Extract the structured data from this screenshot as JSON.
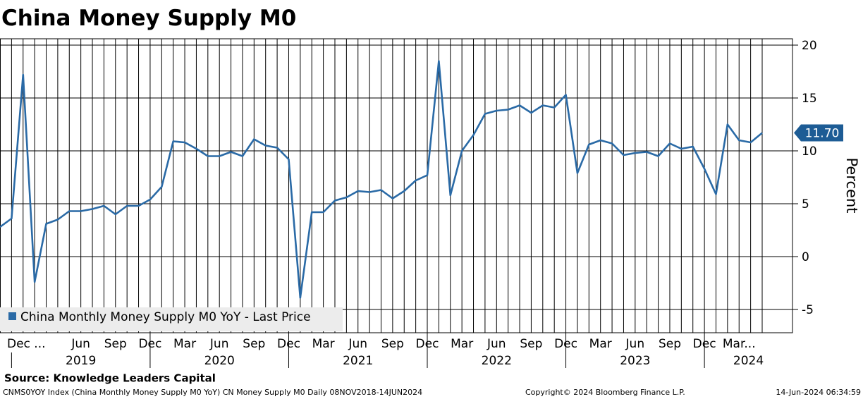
{
  "chart_data": {
    "type": "line",
    "title": "China Money Supply M0",
    "source": "Source: Knowledge Leaders Capital",
    "footer_left": "CNMS0YOY Index (China Monthly Money Supply M0 YoY) CN Money Supply M0  Daily 08NOV2018-14JUN2024",
    "footer_center": "Copyright© 2024 Bloomberg Finance L.P.",
    "footer_right": "14-Jun-2024 06:34:59",
    "y_axis_label": "Percent",
    "categories": [
      null,
      "Dec ...",
      null,
      null,
      null,
      null,
      null,
      "Jun",
      null,
      null,
      "Sep",
      null,
      null,
      "Dec",
      null,
      null,
      "Mar",
      null,
      null,
      "Jun",
      null,
      null,
      "Sep",
      null,
      null,
      "Dec",
      null,
      null,
      "Mar",
      null,
      null,
      "Jun",
      null,
      null,
      "Sep",
      null,
      null,
      "Dec",
      null,
      null,
      "Mar",
      null,
      null,
      "Jun",
      null,
      null,
      "Sep",
      null,
      null,
      "Dec",
      null,
      null,
      "Mar",
      null,
      null,
      "Jun",
      null,
      null,
      "Sep",
      null,
      null,
      "Dec",
      null,
      null,
      "Mar...",
      null,
      null
    ],
    "years": [
      "2019",
      "2020",
      "2021",
      "2022",
      "2023",
      "2024"
    ],
    "series": [
      {
        "name": "China Monthly Money Supply M0 YoY - Last Price",
        "color": "#2a6aa6",
        "values": [
          2.8,
          3.6,
          17.2,
          -2.4,
          3.1,
          3.5,
          4.3,
          4.3,
          4.5,
          4.8,
          4.0,
          4.8,
          4.8,
          5.4,
          6.6,
          10.9,
          10.8,
          10.2,
          9.5,
          9.5,
          9.9,
          9.5,
          11.1,
          10.5,
          10.3,
          9.2,
          -3.9,
          4.2,
          4.2,
          5.3,
          5.6,
          6.2,
          6.1,
          6.3,
          5.5,
          6.2,
          7.2,
          7.7,
          18.5,
          5.8,
          10.0,
          11.5,
          13.5,
          13.8,
          13.9,
          14.3,
          13.6,
          14.3,
          14.1,
          15.3,
          7.9,
          10.6,
          11.0,
          10.7,
          9.6,
          9.8,
          9.9,
          9.5,
          10.7,
          10.2,
          10.4,
          8.3,
          5.9,
          12.5,
          11.0,
          10.8,
          11.7
        ],
        "value_labels": [
          null,
          null,
          null,
          null,
          null,
          null,
          null,
          null,
          null,
          null,
          null,
          null,
          null,
          null,
          null,
          null,
          null,
          null,
          null,
          null,
          null,
          null,
          null,
          null,
          null,
          null,
          null,
          null,
          null,
          null,
          null,
          null,
          null,
          null,
          null,
          null,
          null,
          null,
          null,
          null,
          null,
          null,
          null,
          null,
          null,
          null,
          null,
          null,
          null,
          null,
          null,
          null,
          null,
          null,
          null,
          null,
          null,
          null,
          null,
          null,
          null,
          null,
          null,
          null,
          null,
          null,
          "11.70"
        ]
      }
    ],
    "ylim": [
      -7.2,
      20.6
    ],
    "yticks": [
      -5,
      0,
      5,
      10,
      15,
      20
    ],
    "grid": true,
    "legend": "bottom-left"
  }
}
